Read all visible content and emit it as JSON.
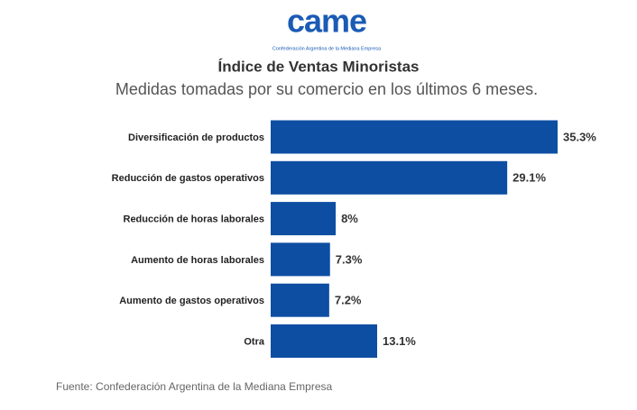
{
  "chart_data": {
    "type": "barh",
    "logo_text": "came",
    "logo_caption": "Confederación Argentina de la Mediana Empresa",
    "title": "Índice de Ventas Minoristas",
    "subtitle": "Medidas tomadas por su comercio en los últimos 6 meses.",
    "categories": [
      "Diversificación de productos",
      "Reducción de gastos operativos",
      "Reducción de horas laborales",
      "Aumento de horas laborales",
      "Aumento de gastos operativos",
      "Otra"
    ],
    "values": [
      35.3,
      29.1,
      8,
      7.3,
      7.2,
      13.1
    ],
    "value_labels": [
      "35.3%",
      "29.1%",
      "8%",
      "7.3%",
      "7.2%",
      "13.1%"
    ],
    "color": "#0d4ea3",
    "source": "Fuente: Confederación Argentina de la Mediana Empresa"
  }
}
